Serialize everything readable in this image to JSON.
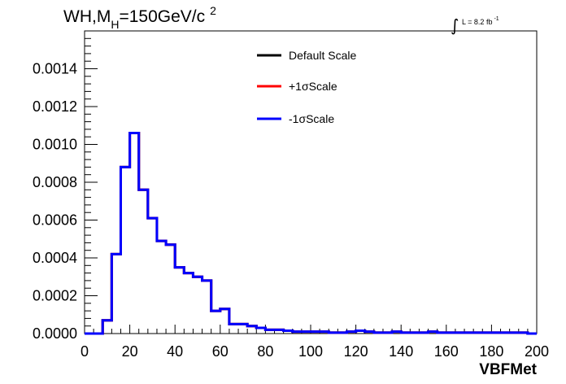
{
  "chart_data": {
    "type": "line",
    "style": "step-histogram",
    "title": "WH,M",
    "title_sub": "H",
    "title_rest": "=150GeV/c",
    "title_sup": "2",
    "lumi_prefix": "∫",
    "lumi_text": "L = 8.2 fb",
    "lumi_sup": "-1",
    "xlabel": "VBFMet",
    "ylabel": "",
    "xlim": [
      0,
      200
    ],
    "ylim": [
      0,
      0.0016
    ],
    "x_ticks": [
      "0",
      "20",
      "40",
      "60",
      "80",
      "100",
      "120",
      "140",
      "160",
      "180",
      "200"
    ],
    "y_ticks": [
      "0.0000",
      "0.0002",
      "0.0004",
      "0.0006",
      "0.0008",
      "0.0010",
      "0.0012",
      "0.0014"
    ],
    "grid": false,
    "legend_position": "top-center",
    "bin_edges": [
      0,
      4,
      8,
      12,
      16,
      20,
      24,
      28,
      32,
      36,
      40,
      44,
      48,
      52,
      56,
      60,
      64,
      68,
      72,
      76,
      80,
      84,
      88,
      92,
      96,
      100,
      104,
      108,
      112,
      116,
      120,
      124,
      128,
      132,
      136,
      140,
      144,
      148,
      152,
      156,
      160,
      164,
      168,
      172,
      176,
      180,
      184,
      188,
      192,
      196,
      200
    ],
    "series": [
      {
        "name": "Default Scale",
        "color": "#000000",
        "values": [
          0,
          0,
          7e-05,
          0.00042,
          0.00088,
          0.00106,
          0.00076,
          0.00061,
          0.00049,
          0.00047,
          0.00035,
          0.00032,
          0.0003,
          0.00028,
          0.00012,
          0.00013,
          5e-05,
          5e-05,
          4e-05,
          3e-05,
          2e-05,
          2e-05,
          1.5e-05,
          1e-05,
          1e-05,
          1e-05,
          1e-05,
          5e-06,
          5e-06,
          1e-05,
          1.5e-05,
          1e-05,
          5e-06,
          5e-06,
          1e-05,
          5e-06,
          5e-06,
          5e-06,
          1e-05,
          5e-06,
          5e-06,
          5e-06,
          5e-06,
          5e-06,
          5e-06,
          5e-06,
          5e-06,
          5e-06,
          5e-06,
          0
        ]
      },
      {
        "name": "+1σScale",
        "color": "#ff0000",
        "values": [
          0,
          0,
          7e-05,
          0.00042,
          0.00088,
          0.00106,
          0.00076,
          0.00061,
          0.00049,
          0.00047,
          0.00035,
          0.00032,
          0.0003,
          0.00028,
          0.00012,
          0.00013,
          5e-05,
          5e-05,
          4e-05,
          3e-05,
          2e-05,
          2e-05,
          1.5e-05,
          1e-05,
          1e-05,
          1e-05,
          1e-05,
          5e-06,
          5e-06,
          1e-05,
          1.5e-05,
          1e-05,
          5e-06,
          5e-06,
          1e-05,
          5e-06,
          5e-06,
          5e-06,
          1e-05,
          5e-06,
          5e-06,
          5e-06,
          5e-06,
          5e-06,
          5e-06,
          5e-06,
          5e-06,
          5e-06,
          5e-06,
          0
        ]
      },
      {
        "name": "-1σScale",
        "color": "#0000ff",
        "values": [
          0,
          0,
          7e-05,
          0.00042,
          0.00088,
          0.00106,
          0.00076,
          0.00061,
          0.00049,
          0.00047,
          0.00035,
          0.00032,
          0.0003,
          0.00028,
          0.00012,
          0.00013,
          5e-05,
          5e-05,
          4e-05,
          3e-05,
          2e-05,
          2e-05,
          1.5e-05,
          1e-05,
          1e-05,
          1e-05,
          1e-05,
          5e-06,
          5e-06,
          1e-05,
          1.5e-05,
          1e-05,
          5e-06,
          5e-06,
          1e-05,
          5e-06,
          5e-06,
          5e-06,
          1e-05,
          5e-06,
          5e-06,
          5e-06,
          5e-06,
          5e-06,
          5e-06,
          5e-06,
          5e-06,
          5e-06,
          5e-06,
          0
        ]
      }
    ]
  }
}
